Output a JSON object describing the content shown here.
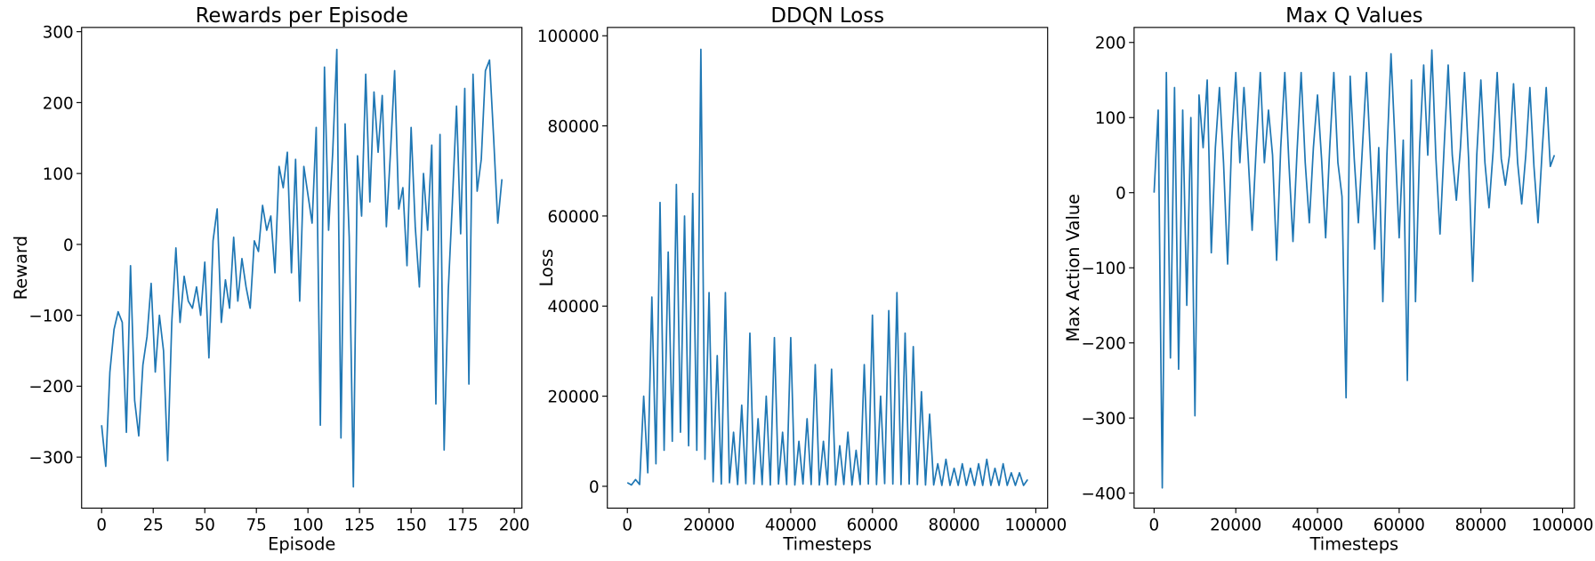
{
  "chart_data": [
    {
      "type": "line",
      "title": "Rewards per Episode",
      "xlabel": "Episode",
      "ylabel": "Reward",
      "x": [
        0,
        2,
        4,
        6,
        8,
        10,
        12,
        14,
        16,
        18,
        20,
        22,
        24,
        26,
        28,
        30,
        32,
        34,
        36,
        38,
        40,
        42,
        44,
        46,
        48,
        50,
        52,
        54,
        56,
        58,
        60,
        62,
        64,
        66,
        68,
        70,
        72,
        74,
        76,
        78,
        80,
        82,
        84,
        86,
        88,
        90,
        92,
        94,
        96,
        98,
        100,
        102,
        104,
        106,
        108,
        110,
        112,
        114,
        116,
        118,
        120,
        122,
        124,
        126,
        128,
        130,
        132,
        134,
        136,
        138,
        140,
        142,
        144,
        146,
        148,
        150,
        152,
        154,
        156,
        158,
        160,
        162,
        164,
        166,
        168,
        170,
        172,
        174,
        176,
        178,
        180,
        182,
        184,
        186,
        188,
        190,
        192,
        194
      ],
      "series": [
        {
          "color": "#1f77b4",
          "values": [
            -255,
            -313,
            -180,
            -120,
            -95,
            -110,
            -265,
            -30,
            -220,
            -270,
            -170,
            -130,
            -55,
            -180,
            -100,
            -150,
            -305,
            -110,
            -5,
            -110,
            -45,
            -80,
            -90,
            -60,
            -100,
            -25,
            -160,
            5,
            50,
            -110,
            -50,
            -90,
            10,
            -80,
            -20,
            -60,
            -90,
            5,
            -10,
            55,
            20,
            40,
            -40,
            110,
            80,
            130,
            -40,
            120,
            -80,
            110,
            70,
            30,
            165,
            -255,
            250,
            20,
            130,
            275,
            -273,
            170,
            10,
            -342,
            125,
            40,
            240,
            60,
            215,
            130,
            210,
            25,
            130,
            245,
            50,
            80,
            -30,
            165,
            25,
            -60,
            100,
            20,
            140,
            -225,
            155,
            -290,
            -65,
            60,
            195,
            15,
            220,
            -197,
            240,
            75,
            120,
            245,
            260,
            150,
            30,
            92
          ]
        }
      ],
      "xlim": [
        -9.7,
        203.7
      ],
      "ylim": [
        -372,
        306
      ],
      "xticks": [
        0,
        25,
        50,
        75,
        100,
        125,
        150,
        175,
        200
      ],
      "yticks": [
        {
          "value": -300,
          "label": "−300"
        },
        {
          "value": -200,
          "label": "−200"
        },
        {
          "value": -100,
          "label": "−100"
        },
        0,
        100,
        200,
        300
      ]
    },
    {
      "type": "line",
      "title": "DDQN Loss",
      "xlabel": "Timesteps",
      "ylabel": "Loss",
      "x": [
        0,
        1000,
        2000,
        3000,
        4000,
        5000,
        6000,
        7000,
        8000,
        9000,
        10000,
        11000,
        12000,
        13000,
        14000,
        15000,
        16000,
        17000,
        18000,
        19000,
        20000,
        21000,
        22000,
        23000,
        24000,
        25000,
        26000,
        27000,
        28000,
        29000,
        30000,
        31000,
        32000,
        33000,
        34000,
        35000,
        36000,
        37000,
        38000,
        39000,
        40000,
        41000,
        42000,
        43000,
        44000,
        45000,
        46000,
        47000,
        48000,
        49000,
        50000,
        51000,
        52000,
        53000,
        54000,
        55000,
        56000,
        57000,
        58000,
        59000,
        60000,
        61000,
        62000,
        63000,
        64000,
        65000,
        66000,
        67000,
        68000,
        69000,
        70000,
        71000,
        72000,
        73000,
        74000,
        75000,
        76000,
        77000,
        78000,
        79000,
        80000,
        81000,
        82000,
        83000,
        84000,
        85000,
        86000,
        87000,
        88000,
        89000,
        90000,
        91000,
        92000,
        93000,
        94000,
        95000,
        96000,
        97000,
        98000
      ],
      "series": [
        {
          "color": "#1f77b4",
          "values": [
            800,
            300,
            1500,
            400,
            20000,
            3000,
            42000,
            5000,
            63000,
            8000,
            52000,
            10000,
            67000,
            12000,
            60000,
            9000,
            65000,
            8000,
            97000,
            6000,
            43000,
            1000,
            29000,
            500,
            43000,
            800,
            12000,
            400,
            18000,
            600,
            34000,
            500,
            15000,
            400,
            20000,
            300,
            33000,
            500,
            12000,
            400,
            33000,
            300,
            10000,
            500,
            15000,
            400,
            27000,
            300,
            10000,
            400,
            26000,
            300,
            9000,
            400,
            12000,
            300,
            8000,
            400,
            27000,
            500,
            38000,
            400,
            20000,
            600,
            39000,
            500,
            43000,
            400,
            34000,
            500,
            31000,
            400,
            21000,
            300,
            16000,
            300,
            5000,
            200,
            6000,
            200,
            4000,
            200,
            5000,
            200,
            4000,
            200,
            5000,
            200,
            6000,
            200,
            4000,
            200,
            5000,
            200,
            3000,
            200,
            3000,
            200,
            1500
          ]
        }
      ],
      "xlim": [
        -4900,
        102900
      ],
      "ylim": [
        -4850,
        101850
      ],
      "xticks": [
        0,
        20000,
        40000,
        60000,
        80000,
        100000
      ],
      "yticks": [
        0,
        20000,
        40000,
        60000,
        80000,
        100000
      ]
    },
    {
      "type": "line",
      "title": "Max Q Values",
      "xlabel": "Timesteps",
      "ylabel": "Max Action Value",
      "x": [
        0,
        1000,
        2000,
        3000,
        4000,
        5000,
        6000,
        7000,
        8000,
        9000,
        10000,
        11000,
        12000,
        13000,
        14000,
        15000,
        16000,
        17000,
        18000,
        19000,
        20000,
        21000,
        22000,
        23000,
        24000,
        25000,
        26000,
        27000,
        28000,
        29000,
        30000,
        31000,
        32000,
        33000,
        34000,
        35000,
        36000,
        37000,
        38000,
        39000,
        40000,
        41000,
        42000,
        43000,
        44000,
        45000,
        46000,
        47000,
        48000,
        49000,
        50000,
        51000,
        52000,
        53000,
        54000,
        55000,
        56000,
        57000,
        58000,
        59000,
        60000,
        61000,
        62000,
        63000,
        64000,
        65000,
        66000,
        67000,
        68000,
        69000,
        70000,
        71000,
        72000,
        73000,
        74000,
        75000,
        76000,
        77000,
        78000,
        79000,
        80000,
        81000,
        82000,
        83000,
        84000,
        85000,
        86000,
        87000,
        88000,
        89000,
        90000,
        91000,
        92000,
        93000,
        94000,
        95000,
        96000,
        97000,
        98000
      ],
      "series": [
        {
          "color": "#1f77b4",
          "values": [
            0,
            110,
            -393,
            160,
            -220,
            140,
            -235,
            110,
            -150,
            100,
            -297,
            130,
            60,
            150,
            -80,
            60,
            140,
            40,
            -95,
            70,
            160,
            40,
            140,
            50,
            -50,
            60,
            160,
            40,
            110,
            50,
            -90,
            60,
            160,
            40,
            -65,
            55,
            160,
            40,
            -40,
            60,
            130,
            45,
            -60,
            60,
            160,
            40,
            -5,
            -273,
            155,
            45,
            -40,
            60,
            160,
            45,
            -75,
            60,
            -145,
            50,
            185,
            65,
            -60,
            70,
            -250,
            150,
            -145,
            60,
            170,
            50,
            190,
            45,
            -55,
            60,
            170,
            50,
            -10,
            60,
            160,
            45,
            -118,
            50,
            150,
            40,
            -20,
            55,
            160,
            45,
            10,
            50,
            145,
            40,
            -15,
            50,
            140,
            35,
            -40,
            55,
            140,
            35,
            50
          ]
        }
      ],
      "xlim": [
        -4900,
        102900
      ],
      "ylim": [
        -420,
        220
      ],
      "xticks": [
        0,
        20000,
        40000,
        60000,
        80000,
        100000
      ],
      "yticks": [
        {
          "value": -400,
          "label": "−400"
        },
        {
          "value": -300,
          "label": "−300"
        },
        {
          "value": -200,
          "label": "−200"
        },
        {
          "value": -100,
          "label": "−100"
        },
        0,
        100,
        200
      ]
    }
  ]
}
